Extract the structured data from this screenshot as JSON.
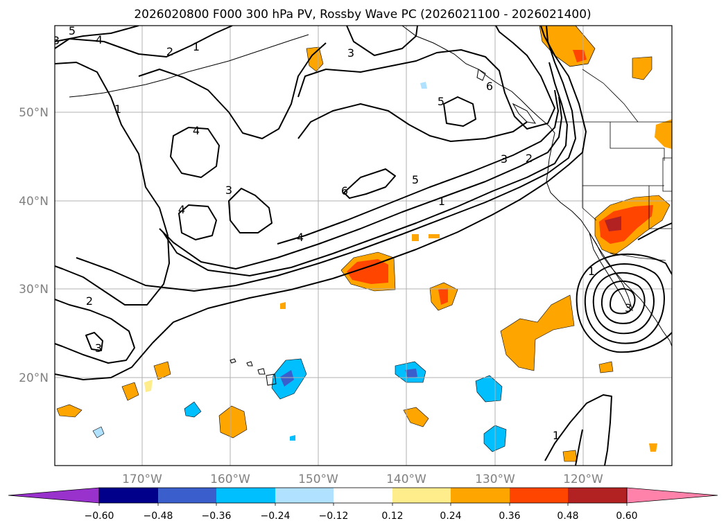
{
  "title": "2026020800 F000 300 hPa PV, Rossby Wave PC (2026021100 - 2026021400)",
  "map": {
    "lat_labels": [
      "50°N",
      "40°N",
      "30°N",
      "20°N"
    ],
    "lon_labels": [
      "170°W",
      "160°W",
      "150°W",
      "140°W",
      "130°W",
      "120°W"
    ],
    "gridlines": true
  },
  "contour_labels": [
    {
      "id": "c5a",
      "text": "5"
    },
    {
      "id": "c4a",
      "text": "4"
    },
    {
      "id": "c3a",
      "text": "3"
    },
    {
      "id": "c2a",
      "text": "2"
    },
    {
      "id": "c1a",
      "text": "1"
    },
    {
      "id": "c1b",
      "text": "1"
    },
    {
      "id": "c4b",
      "text": "4"
    },
    {
      "id": "c3b",
      "text": "3"
    },
    {
      "id": "c4c",
      "text": "4"
    },
    {
      "id": "c4d",
      "text": "4"
    },
    {
      "id": "c3c",
      "text": "3"
    },
    {
      "id": "c5b",
      "text": "5"
    },
    {
      "id": "c6a",
      "text": "6"
    },
    {
      "id": "c5c",
      "text": "5"
    },
    {
      "id": "c1c",
      "text": "1"
    },
    {
      "id": "c3d",
      "text": "3"
    },
    {
      "id": "c2b",
      "text": "2"
    },
    {
      "id": "c2c",
      "text": "2"
    },
    {
      "id": "c3e",
      "text": "3"
    },
    {
      "id": "c1d",
      "text": "1"
    },
    {
      "id": "c1e",
      "text": "1"
    },
    {
      "id": "c3f",
      "text": "3"
    },
    {
      "id": "c6b",
      "text": "6"
    }
  ],
  "colorbar": {
    "labels": [
      "−0.60",
      "−0.48",
      "−0.36",
      "−0.24",
      "−0.12",
      "0.12",
      "0.24",
      "0.36",
      "0.48",
      "0.60"
    ],
    "colors": [
      "#9932cc",
      "#00008b",
      "#3a5fcd",
      "#00bfff",
      "#b0e2ff",
      "#ffffff",
      "#ffec8b",
      "#ffa500",
      "#ff4500",
      "#b22222",
      "#ff82ab"
    ]
  },
  "colors": {
    "gridline": "#b0b0b0",
    "axis_label": "#808080",
    "contour": "#000000"
  }
}
